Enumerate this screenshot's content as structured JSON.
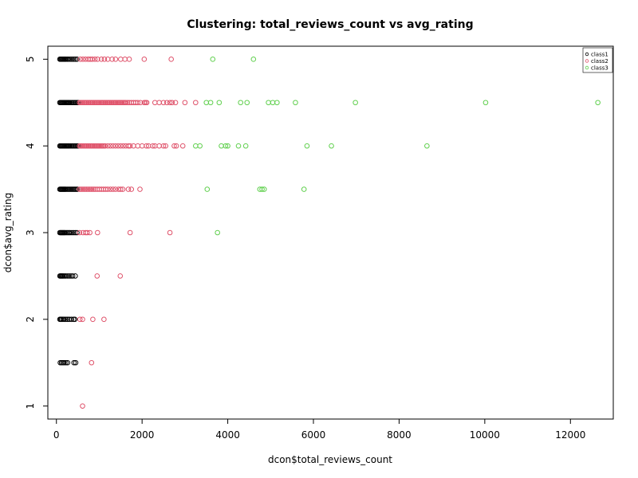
{
  "chart_data": {
    "type": "scatter",
    "title": "Clustering: total_reviews_count vs avg_rating",
    "xlabel": "dcon$total_reviews_count",
    "ylabel": "dcon$avg_rating",
    "xlim": [
      -200,
      13000
    ],
    "ylim": [
      0.85,
      5.15
    ],
    "xticks": [
      0,
      2000,
      4000,
      6000,
      8000,
      10000,
      12000
    ],
    "xtick_labels": [
      "0",
      "2000",
      "4000",
      "6000",
      "8000",
      "10000",
      "12000"
    ],
    "yticks": [
      1,
      2,
      3,
      4,
      5
    ],
    "ytick_labels": [
      "1",
      "2",
      "3",
      "4",
      "5"
    ],
    "grid": false,
    "legend_position": "top-right",
    "marker": "open-circle",
    "series": [
      {
        "name": "class1",
        "color": "#000000",
        "points": [
          [
            80,
            5
          ],
          [
            100,
            5
          ],
          [
            120,
            5
          ],
          [
            140,
            5
          ],
          [
            160,
            5
          ],
          [
            180,
            5
          ],
          [
            200,
            5
          ],
          [
            220,
            5
          ],
          [
            250,
            5
          ],
          [
            280,
            5
          ],
          [
            320,
            5
          ],
          [
            360,
            5
          ],
          [
            400,
            5
          ],
          [
            440,
            5
          ],
          [
            480,
            5
          ],
          [
            80,
            4.5
          ],
          [
            100,
            4.5
          ],
          [
            120,
            4.5
          ],
          [
            140,
            4.5
          ],
          [
            160,
            4.5
          ],
          [
            180,
            4.5
          ],
          [
            200,
            4.5
          ],
          [
            220,
            4.5
          ],
          [
            240,
            4.5
          ],
          [
            260,
            4.5
          ],
          [
            280,
            4.5
          ],
          [
            300,
            4.5
          ],
          [
            330,
            4.5
          ],
          [
            360,
            4.5
          ],
          [
            390,
            4.5
          ],
          [
            420,
            4.5
          ],
          [
            450,
            4.5
          ],
          [
            480,
            4.5
          ],
          [
            510,
            4.5
          ],
          [
            80,
            4
          ],
          [
            100,
            4
          ],
          [
            120,
            4
          ],
          [
            140,
            4
          ],
          [
            160,
            4
          ],
          [
            180,
            4
          ],
          [
            200,
            4
          ],
          [
            220,
            4
          ],
          [
            240,
            4
          ],
          [
            260,
            4
          ],
          [
            280,
            4
          ],
          [
            300,
            4
          ],
          [
            330,
            4
          ],
          [
            360,
            4
          ],
          [
            390,
            4
          ],
          [
            420,
            4
          ],
          [
            450,
            4
          ],
          [
            480,
            4
          ],
          [
            510,
            4
          ],
          [
            80,
            3.5
          ],
          [
            100,
            3.5
          ],
          [
            120,
            3.5
          ],
          [
            140,
            3.5
          ],
          [
            160,
            3.5
          ],
          [
            180,
            3.5
          ],
          [
            200,
            3.5
          ],
          [
            220,
            3.5
          ],
          [
            250,
            3.5
          ],
          [
            280,
            3.5
          ],
          [
            310,
            3.5
          ],
          [
            340,
            3.5
          ],
          [
            370,
            3.5
          ],
          [
            400,
            3.5
          ],
          [
            430,
            3.5
          ],
          [
            460,
            3.5
          ],
          [
            490,
            3.5
          ],
          [
            80,
            3
          ],
          [
            100,
            3
          ],
          [
            120,
            3
          ],
          [
            140,
            3
          ],
          [
            160,
            3
          ],
          [
            180,
            3
          ],
          [
            200,
            3
          ],
          [
            230,
            3
          ],
          [
            260,
            3
          ],
          [
            290,
            3
          ],
          [
            320,
            3
          ],
          [
            360,
            3
          ],
          [
            400,
            3
          ],
          [
            440,
            3
          ],
          [
            480,
            3
          ],
          [
            80,
            2.5
          ],
          [
            100,
            2.5
          ],
          [
            120,
            2.5
          ],
          [
            140,
            2.5
          ],
          [
            160,
            2.5
          ],
          [
            190,
            2.5
          ],
          [
            220,
            2.5
          ],
          [
            260,
            2.5
          ],
          [
            300,
            2.5
          ],
          [
            340,
            2.5
          ],
          [
            380,
            2.5
          ],
          [
            440,
            2.5
          ],
          [
            80,
            2
          ],
          [
            100,
            2
          ],
          [
            120,
            2
          ],
          [
            150,
            2
          ],
          [
            180,
            2
          ],
          [
            220,
            2
          ],
          [
            260,
            2
          ],
          [
            300,
            2
          ],
          [
            350,
            2
          ],
          [
            400,
            2
          ],
          [
            430,
            2
          ],
          [
            90,
            1.5
          ],
          [
            120,
            1.5
          ],
          [
            150,
            1.5
          ],
          [
            180,
            1.5
          ],
          [
            220,
            1.5
          ],
          [
            260,
            1.5
          ],
          [
            410,
            1.5
          ],
          [
            450,
            1.5
          ]
        ]
      },
      {
        "name": "class2",
        "color": "#df536b",
        "points": [
          [
            560,
            5
          ],
          [
            620,
            5
          ],
          [
            680,
            5
          ],
          [
            740,
            5
          ],
          [
            790,
            5
          ],
          [
            840,
            5
          ],
          [
            900,
            5
          ],
          [
            960,
            5
          ],
          [
            1050,
            5
          ],
          [
            1120,
            5
          ],
          [
            1200,
            5
          ],
          [
            1300,
            5
          ],
          [
            1380,
            5
          ],
          [
            1500,
            5
          ],
          [
            1600,
            5
          ],
          [
            1700,
            5
          ],
          [
            2050,
            5
          ],
          [
            2680,
            5
          ],
          [
            540,
            4.5
          ],
          [
            570,
            4.5
          ],
          [
            600,
            4.5
          ],
          [
            630,
            4.5
          ],
          [
            660,
            4.5
          ],
          [
            690,
            4.5
          ],
          [
            720,
            4.5
          ],
          [
            750,
            4.5
          ],
          [
            780,
            4.5
          ],
          [
            810,
            4.5
          ],
          [
            840,
            4.5
          ],
          [
            870,
            4.5
          ],
          [
            900,
            4.5
          ],
          [
            930,
            4.5
          ],
          [
            960,
            4.5
          ],
          [
            990,
            4.5
          ],
          [
            1020,
            4.5
          ],
          [
            1050,
            4.5
          ],
          [
            1080,
            4.5
          ],
          [
            1110,
            4.5
          ],
          [
            1140,
            4.5
          ],
          [
            1170,
            4.5
          ],
          [
            1200,
            4.5
          ],
          [
            1230,
            4.5
          ],
          [
            1260,
            4.5
          ],
          [
            1290,
            4.5
          ],
          [
            1320,
            4.5
          ],
          [
            1350,
            4.5
          ],
          [
            1380,
            4.5
          ],
          [
            1410,
            4.5
          ],
          [
            1440,
            4.5
          ],
          [
            1470,
            4.5
          ],
          [
            1500,
            4.5
          ],
          [
            1530,
            4.5
          ],
          [
            1560,
            4.5
          ],
          [
            1590,
            4.5
          ],
          [
            1620,
            4.5
          ],
          [
            1660,
            4.5
          ],
          [
            1700,
            4.5
          ],
          [
            1750,
            4.5
          ],
          [
            1800,
            4.5
          ],
          [
            1850,
            4.5
          ],
          [
            1900,
            4.5
          ],
          [
            1960,
            4.5
          ],
          [
            2050,
            4.5
          ],
          [
            2080,
            4.5
          ],
          [
            2110,
            4.5
          ],
          [
            2300,
            4.5
          ],
          [
            2400,
            4.5
          ],
          [
            2500,
            4.5
          ],
          [
            2580,
            4.5
          ],
          [
            2650,
            4.5
          ],
          [
            2700,
            4.5
          ],
          [
            2780,
            4.5
          ],
          [
            3000,
            4.5
          ],
          [
            3250,
            4.5
          ],
          [
            540,
            4
          ],
          [
            570,
            4
          ],
          [
            600,
            4
          ],
          [
            630,
            4
          ],
          [
            660,
            4
          ],
          [
            690,
            4
          ],
          [
            720,
            4
          ],
          [
            750,
            4
          ],
          [
            780,
            4
          ],
          [
            810,
            4
          ],
          [
            840,
            4
          ],
          [
            870,
            4
          ],
          [
            900,
            4
          ],
          [
            930,
            4
          ],
          [
            960,
            4
          ],
          [
            990,
            4
          ],
          [
            1020,
            4
          ],
          [
            1050,
            4
          ],
          [
            1080,
            4
          ],
          [
            1110,
            4
          ],
          [
            1140,
            4
          ],
          [
            1200,
            4
          ],
          [
            1260,
            4
          ],
          [
            1320,
            4
          ],
          [
            1380,
            4
          ],
          [
            1440,
            4
          ],
          [
            1500,
            4
          ],
          [
            1560,
            4
          ],
          [
            1620,
            4
          ],
          [
            1680,
            4
          ],
          [
            1720,
            4
          ],
          [
            1800,
            4
          ],
          [
            1900,
            4
          ],
          [
            2000,
            4
          ],
          [
            2100,
            4
          ],
          [
            2150,
            4
          ],
          [
            2250,
            4
          ],
          [
            2300,
            4
          ],
          [
            2400,
            4
          ],
          [
            2500,
            4
          ],
          [
            2550,
            4
          ],
          [
            2750,
            4
          ],
          [
            2800,
            4
          ],
          [
            2950,
            4
          ],
          [
            540,
            3.5
          ],
          [
            580,
            3.5
          ],
          [
            620,
            3.5
          ],
          [
            660,
            3.5
          ],
          [
            700,
            3.5
          ],
          [
            740,
            3.5
          ],
          [
            780,
            3.5
          ],
          [
            820,
            3.5
          ],
          [
            860,
            3.5
          ],
          [
            900,
            3.5
          ],
          [
            950,
            3.5
          ],
          [
            1000,
            3.5
          ],
          [
            1050,
            3.5
          ],
          [
            1100,
            3.5
          ],
          [
            1150,
            3.5
          ],
          [
            1200,
            3.5
          ],
          [
            1260,
            3.5
          ],
          [
            1320,
            3.5
          ],
          [
            1380,
            3.5
          ],
          [
            1450,
            3.5
          ],
          [
            1500,
            3.5
          ],
          [
            1550,
            3.5
          ],
          [
            1680,
            3.5
          ],
          [
            1750,
            3.5
          ],
          [
            1950,
            3.5
          ],
          [
            540,
            3
          ],
          [
            620,
            3
          ],
          [
            680,
            3
          ],
          [
            720,
            3
          ],
          [
            780,
            3
          ],
          [
            960,
            3
          ],
          [
            1720,
            3
          ],
          [
            2650,
            3
          ],
          [
            950,
            2.5
          ],
          [
            1490,
            2.5
          ],
          [
            550,
            2
          ],
          [
            610,
            2
          ],
          [
            850,
            2
          ],
          [
            1110,
            2
          ],
          [
            820,
            1.5
          ],
          [
            610,
            1
          ]
        ]
      },
      {
        "name": "class3",
        "color": "#61d04f",
        "points": [
          [
            3650,
            5
          ],
          [
            4600,
            5
          ],
          [
            3500,
            4.5
          ],
          [
            3600,
            4.5
          ],
          [
            3800,
            4.5
          ],
          [
            4300,
            4.5
          ],
          [
            4450,
            4.5
          ],
          [
            4950,
            4.5
          ],
          [
            5050,
            4.5
          ],
          [
            5150,
            4.5
          ],
          [
            5580,
            4.5
          ],
          [
            6980,
            4.5
          ],
          [
            10020,
            4.5
          ],
          [
            12640,
            4.5
          ],
          [
            3250,
            4
          ],
          [
            3350,
            4
          ],
          [
            3850,
            4
          ],
          [
            3950,
            4
          ],
          [
            4000,
            4
          ],
          [
            4250,
            4
          ],
          [
            4420,
            4
          ],
          [
            5850,
            4
          ],
          [
            6420,
            4
          ],
          [
            8650,
            4
          ],
          [
            3520,
            3.5
          ],
          [
            4750,
            3.5
          ],
          [
            4800,
            3.5
          ],
          [
            4850,
            3.5
          ],
          [
            5780,
            3.5
          ],
          [
            3760,
            3
          ]
        ]
      }
    ]
  }
}
